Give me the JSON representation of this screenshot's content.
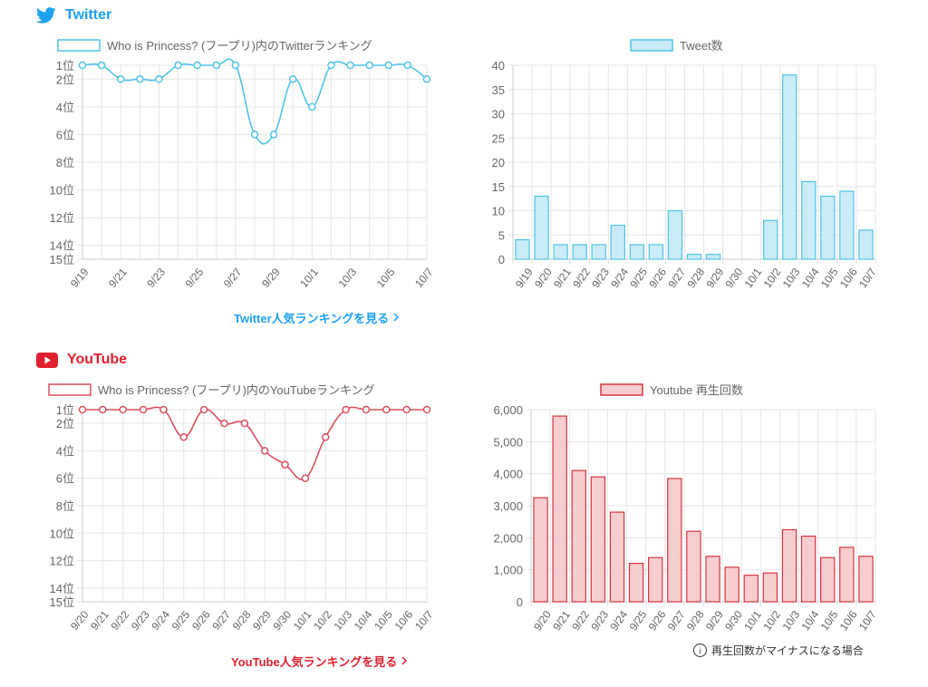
{
  "twitter": {
    "title": "Twitter",
    "color": "#1da1f2",
    "more_link": "Twitter人気ランキングを見る",
    "rank_chart": {
      "type": "line",
      "title": "Who is Princess? (フープリ)内のTwitterランキング",
      "x": [
        "9/19",
        "9/20",
        "9/21",
        "9/22",
        "9/23",
        "9/24",
        "9/25",
        "9/26",
        "9/27",
        "9/28",
        "9/29",
        "9/30",
        "10/1",
        "10/2",
        "10/3",
        "10/4",
        "10/5",
        "10/6",
        "10/7"
      ],
      "x_tick_labels": [
        "9/19",
        "9/21",
        "9/23",
        "9/25",
        "9/27",
        "9/29",
        "10/1",
        "10/3",
        "10/5",
        "10/7"
      ],
      "y": [
        1,
        1,
        2,
        2,
        2,
        1,
        1,
        1,
        1,
        6,
        6,
        2,
        4,
        1,
        1,
        1,
        1,
        1,
        2
      ],
      "y_ticks": [
        1,
        2,
        4,
        6,
        8,
        10,
        12,
        14,
        15
      ],
      "y_tick_labels": [
        "1位",
        "2位",
        "4位",
        "6位",
        "8位",
        "10位",
        "12位",
        "14位",
        "15位"
      ],
      "ylim": [
        1,
        15
      ],
      "y_reversed": true,
      "color": "#4fc3e8"
    },
    "count_chart": {
      "type": "bar",
      "legend": "Tweet数",
      "categories": [
        "9/19",
        "9/20",
        "9/21",
        "9/22",
        "9/23",
        "9/24",
        "9/25",
        "9/26",
        "9/27",
        "9/28",
        "9/29",
        "9/30",
        "10/1",
        "10/2",
        "10/3",
        "10/4",
        "10/5",
        "10/6",
        "10/7"
      ],
      "values": [
        4,
        13,
        3,
        3,
        3,
        7,
        3,
        3,
        10,
        1,
        1,
        0,
        0,
        8,
        38,
        16,
        13,
        14,
        6
      ],
      "ylim": [
        0,
        40
      ],
      "y_ticks": [
        0,
        5,
        10,
        15,
        20,
        25,
        30,
        35,
        40
      ],
      "y_tick_labels": [
        "0",
        "5",
        "10",
        "15",
        "20",
        "25",
        "30",
        "35",
        "40"
      ],
      "color": "#4fc3e8",
      "fill": "#c9ecf8"
    }
  },
  "youtube": {
    "title": "YouTube",
    "color": "#e0202e",
    "more_link": "YouTube人気ランキングを見る",
    "note": "再生回数がマイナスになる場合",
    "info_glyph": "i",
    "rank_chart": {
      "type": "line",
      "title": "Who is Princess? (フープリ)内のYouTubeランキング",
      "x": [
        "9/20",
        "9/21",
        "9/22",
        "9/23",
        "9/24",
        "9/25",
        "9/26",
        "9/27",
        "9/28",
        "9/29",
        "9/30",
        "10/1",
        "10/2",
        "10/3",
        "10/4",
        "10/5",
        "10/6",
        "10/7"
      ],
      "x_tick_labels": [
        "9/20",
        "9/21",
        "9/22",
        "9/23",
        "9/24",
        "9/25",
        "9/26",
        "9/27",
        "9/28",
        "9/29",
        "9/30",
        "10/1",
        "10/2",
        "10/3",
        "10/4",
        "10/5",
        "10/6",
        "10/7"
      ],
      "y": [
        1,
        1,
        1,
        1,
        1,
        3,
        1,
        2,
        2,
        4,
        5,
        6,
        3,
        1,
        1,
        1,
        1,
        1
      ],
      "y_ticks": [
        1,
        2,
        4,
        6,
        8,
        10,
        12,
        14,
        15
      ],
      "y_tick_labels": [
        "1位",
        "2位",
        "4位",
        "6位",
        "8位",
        "10位",
        "12位",
        "14位",
        "15位"
      ],
      "ylim": [
        1,
        15
      ],
      "y_reversed": true,
      "color": "#d9505c"
    },
    "count_chart": {
      "type": "bar",
      "legend": "Youtube 再生回数",
      "categories": [
        "9/20",
        "9/21",
        "9/22",
        "9/23",
        "9/24",
        "9/25",
        "9/26",
        "9/27",
        "9/28",
        "9/29",
        "9/30",
        "10/1",
        "10/2",
        "10/3",
        "10/4",
        "10/5",
        "10/6",
        "10/7"
      ],
      "values": [
        3250,
        5800,
        4100,
        3900,
        2800,
        1200,
        1380,
        3850,
        2200,
        1420,
        1080,
        830,
        900,
        2250,
        2050,
        1380,
        1700,
        1420
      ],
      "ylim": [
        0,
        6000
      ],
      "y_ticks": [
        0,
        1000,
        2000,
        3000,
        4000,
        5000,
        6000
      ],
      "y_tick_labels": [
        "0",
        "1,000",
        "2,000",
        "3,000",
        "4,000",
        "5,000",
        "6,000"
      ],
      "color": "#d8343f",
      "fill": "#f8cdd0"
    }
  }
}
